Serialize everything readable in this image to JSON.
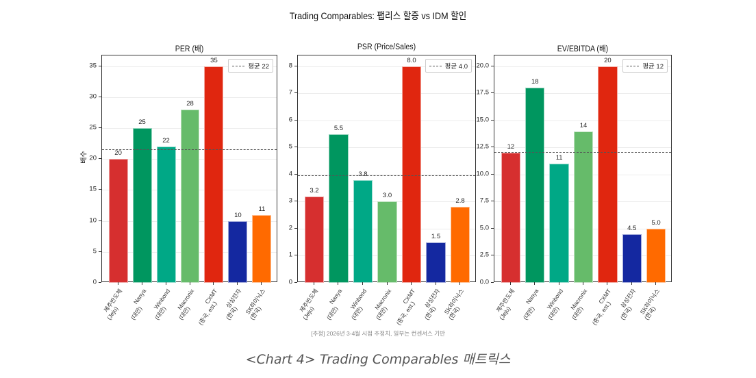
{
  "suptitle": "Trading Comparables: 팹리스 할증 vs IDM 할인",
  "note": "[추정] 2026년 3-4월 시점 추정치, 일부는 컨센서스 기반",
  "caption": "<Chart 4> Trading Comparables 매트릭스",
  "colors": [
    "#d62f2f",
    "#00965f",
    "#00a886",
    "#66bb6a",
    "#e0260f",
    "#1428a0",
    "#ff6a00"
  ],
  "categories": [
    [
      "제주반도체",
      "(Jeju)"
    ],
    [
      "Nanya",
      "(대만)"
    ],
    [
      "Winbond",
      "(대만)"
    ],
    [
      "Macronix",
      "(대만)"
    ],
    [
      "CXMT",
      "(중국, est.)"
    ],
    [
      "삼성전자",
      "(한국)"
    ],
    [
      "SK하이닉스",
      "(한국)"
    ]
  ],
  "chart_data": [
    {
      "type": "bar",
      "title": "PER (배)",
      "xlabel": "",
      "ylabel": "배수",
      "categories": [
        "제주반도체 (Jeju)",
        "Nanya (대만)",
        "Winbond (대만)",
        "Macronix (대만)",
        "CXMT (중국, est.)",
        "삼성전자 (한국)",
        "SK하이닉스 (한국)"
      ],
      "values": [
        20,
        25,
        22,
        28,
        35,
        10,
        11
      ],
      "value_labels": [
        "20",
        "25",
        "22",
        "28",
        "35",
        "10",
        "11"
      ],
      "average": 21.6,
      "legend": [
        "평균 22"
      ],
      "legend_position": "upper right",
      "yticks": [
        "0",
        "5",
        "10",
        "15",
        "20",
        "25",
        "30",
        "35"
      ],
      "ytick_values": [
        0,
        5,
        10,
        15,
        20,
        25,
        30,
        35
      ],
      "ylim": [
        0,
        36.75
      ],
      "grid": true
    },
    {
      "type": "bar",
      "title": "PSR (Price/Sales)",
      "xlabel": "",
      "ylabel": "",
      "categories": [
        "제주반도체 (Jeju)",
        "Nanya (대만)",
        "Winbond (대만)",
        "Macronix (대만)",
        "CXMT (중국, est.)",
        "삼성전자 (한국)",
        "SK하이닉스 (한국)"
      ],
      "values": [
        3.2,
        5.5,
        3.8,
        3.0,
        8.0,
        1.5,
        2.8
      ],
      "value_labels": [
        "3.2",
        "5.5",
        "3.8",
        "3.0",
        "8.0",
        "1.5",
        "2.8"
      ],
      "average": 3.97,
      "legend": [
        "평균 4.0"
      ],
      "legend_position": "upper right",
      "yticks": [
        "0",
        "1",
        "2",
        "3",
        "4",
        "5",
        "6",
        "7",
        "8"
      ],
      "ytick_values": [
        0,
        1,
        2,
        3,
        4,
        5,
        6,
        7,
        8
      ],
      "ylim": [
        0,
        8.4
      ],
      "grid": true
    },
    {
      "type": "bar",
      "title": "EV/EBITDA (배)",
      "xlabel": "",
      "ylabel": "",
      "categories": [
        "제주반도체 (Jeju)",
        "Nanya (대만)",
        "Winbond (대만)",
        "Macronix (대만)",
        "CXMT (중국, est.)",
        "삼성전자 (한국)",
        "SK하이닉스 (한국)"
      ],
      "values": [
        12,
        18,
        11,
        14,
        20,
        4.5,
        5.0
      ],
      "value_labels": [
        "12",
        "18",
        "11",
        "14",
        "20",
        "4.5",
        "5.0"
      ],
      "average": 12.07,
      "legend": [
        "평균 12"
      ],
      "legend_position": "upper right",
      "yticks": [
        "0.0",
        "2.5",
        "5.0",
        "7.5",
        "10.0",
        "12.5",
        "15.0",
        "17.5",
        "20.0"
      ],
      "ytick_values": [
        0,
        2.5,
        5,
        7.5,
        10,
        12.5,
        15,
        17.5,
        20
      ],
      "ylim": [
        0,
        21
      ],
      "grid": true
    }
  ]
}
